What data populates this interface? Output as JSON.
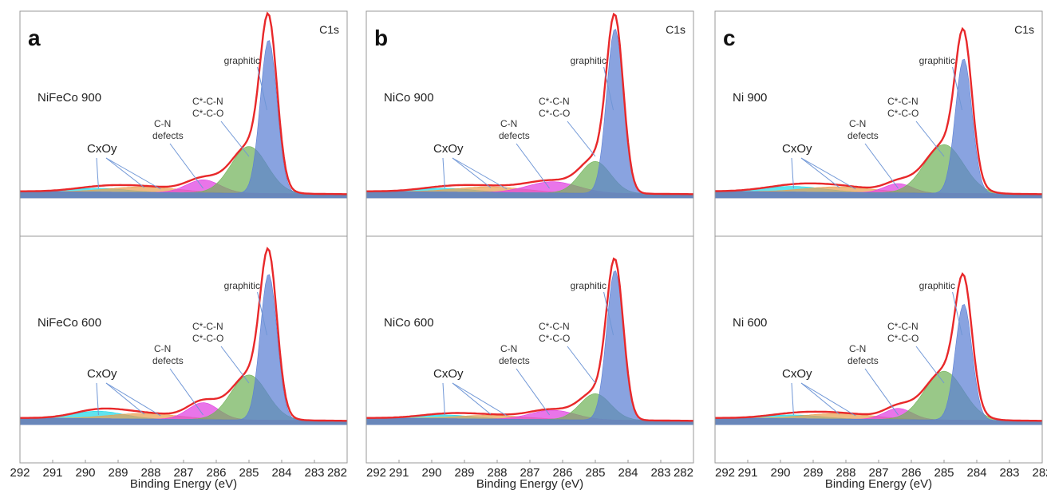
{
  "chart_data": [
    {
      "type": "area",
      "panel_letter": "a",
      "core_level": "C1s",
      "xlabel": "Binding Energy (eV)",
      "xlim": [
        292,
        282
      ],
      "x_ticks": [
        "292",
        "291",
        "290",
        "289",
        "288",
        "287",
        "286",
        "285",
        "284",
        "283",
        "282"
      ],
      "annotations": [
        "graphitic",
        "C*-C-N",
        "C*-C-O",
        "C-N",
        "defects",
        "CxOy"
      ],
      "samples": [
        {
          "name": "NiFeCo 900",
          "components": [
            {
              "label": "graphitic",
              "center": 284.4,
              "height": 0.82,
              "width": 0.6
            },
            {
              "label": "C*-C-N / C*-C-O",
              "center": 285.0,
              "height": 0.25,
              "width": 1.3
            },
            {
              "label": "C-N defects",
              "center": 286.4,
              "height": 0.07,
              "width": 1.2
            },
            {
              "label": "CxOy",
              "center": 288.2,
              "height": 0.03,
              "width": 2.5
            },
            {
              "label": "CxOy",
              "center": 289.6,
              "height": 0.02,
              "width": 2.0
            }
          ]
        },
        {
          "name": "NiFeCo 600",
          "components": [
            {
              "label": "graphitic",
              "center": 284.4,
              "height": 0.78,
              "width": 0.6
            },
            {
              "label": "C*-C-N / C*-C-O",
              "center": 285.0,
              "height": 0.24,
              "width": 1.3
            },
            {
              "label": "C-N defects",
              "center": 286.4,
              "height": 0.09,
              "width": 1.1
            },
            {
              "label": "CxOy",
              "center": 288.2,
              "height": 0.03,
              "width": 2.5
            },
            {
              "label": "CxOy",
              "center": 289.6,
              "height": 0.04,
              "width": 1.8
            }
          ]
        }
      ]
    },
    {
      "type": "area",
      "panel_letter": "b",
      "core_level": "C1s",
      "xlabel": "Binding Energy (eV)",
      "xlim": [
        292,
        282
      ],
      "x_ticks": [
        "292",
        "291",
        "290",
        "289",
        "288",
        "287",
        "286",
        "285",
        "284",
        "283",
        "282"
      ],
      "annotations": [
        "graphitic",
        "C*-C-N",
        "C*-C-O",
        "C-N",
        "defects",
        "CxOy"
      ],
      "samples": [
        {
          "name": "NiCo 900",
          "components": [
            {
              "label": "graphitic",
              "center": 284.4,
              "height": 0.88,
              "width": 0.6
            },
            {
              "label": "C*-C-N / C*-C-O",
              "center": 285.0,
              "height": 0.17,
              "width": 1.1
            },
            {
              "label": "C-N defects",
              "center": 286.3,
              "height": 0.06,
              "width": 1.8
            },
            {
              "label": "CxOy",
              "center": 288.2,
              "height": 0.03,
              "width": 2.5
            },
            {
              "label": "CxOy",
              "center": 289.6,
              "height": 0.02,
              "width": 2.0
            }
          ]
        },
        {
          "name": "NiCo 600",
          "components": [
            {
              "label": "graphitic",
              "center": 284.4,
              "height": 0.8,
              "width": 0.6
            },
            {
              "label": "C*-C-N / C*-C-O",
              "center": 285.0,
              "height": 0.14,
              "width": 1.1
            },
            {
              "label": "C-N defects",
              "center": 286.3,
              "height": 0.05,
              "width": 1.6
            },
            {
              "label": "CxOy",
              "center": 288.2,
              "height": 0.02,
              "width": 2.5
            },
            {
              "label": "CxOy",
              "center": 289.6,
              "height": 0.02,
              "width": 2.0
            }
          ]
        }
      ]
    },
    {
      "type": "area",
      "panel_letter": "c",
      "core_level": "C1s",
      "xlabel": "Binding Energy (eV)",
      "xlim": [
        292,
        282
      ],
      "x_ticks": [
        "292",
        "291",
        "290",
        "289",
        "288",
        "287",
        "286",
        "285",
        "284",
        "283",
        "282"
      ],
      "annotations": [
        "graphitic",
        "C*-C-N",
        "C*-C-O",
        "C-N",
        "defects",
        "CxOy"
      ],
      "samples": [
        {
          "name": "Ni 900",
          "components": [
            {
              "label": "graphitic",
              "center": 284.4,
              "height": 0.72,
              "width": 0.6
            },
            {
              "label": "C*-C-N / C*-C-O",
              "center": 285.0,
              "height": 0.26,
              "width": 1.4
            },
            {
              "label": "C-N defects",
              "center": 286.4,
              "height": 0.05,
              "width": 1.0
            },
            {
              "label": "CxOy",
              "center": 288.2,
              "height": 0.03,
              "width": 2.5
            },
            {
              "label": "CxOy",
              "center": 289.6,
              "height": 0.03,
              "width": 2.2
            }
          ]
        },
        {
          "name": "Ni 600",
          "components": [
            {
              "label": "graphitic",
              "center": 284.4,
              "height": 0.62,
              "width": 0.6
            },
            {
              "label": "C*-C-N / C*-C-O",
              "center": 285.0,
              "height": 0.26,
              "width": 1.4
            },
            {
              "label": "C-N defects",
              "center": 286.4,
              "height": 0.06,
              "width": 1.0
            },
            {
              "label": "CxOy",
              "center": 288.2,
              "height": 0.03,
              "width": 2.5
            },
            {
              "label": "CxOy",
              "center": 289.6,
              "height": 0.02,
              "width": 2.0
            }
          ]
        }
      ]
    }
  ],
  "component_colors": [
    "#5b7fd4",
    "#72b35a",
    "#e040e0",
    "#e9a050",
    "#22d8e8"
  ],
  "envelope_color": "#e8282a"
}
